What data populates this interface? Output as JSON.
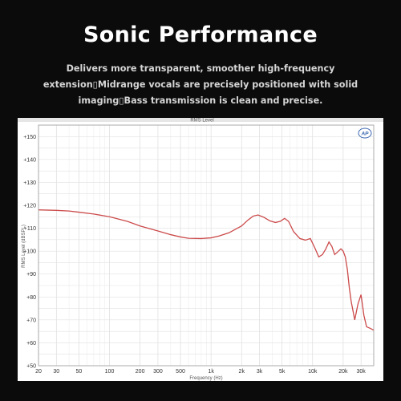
{
  "header": {
    "title": "Sonic Performance",
    "description": "Delivers more transparent, smoother high-frequency extension▯Midrange vocals are precisely positioned with solid imaging▯Bass transmission is clean and precise."
  },
  "chart_data": {
    "type": "line",
    "title": "RMS Level",
    "xlabel": "Frequency (Hz)",
    "ylabel": "RMS Level (dBSPL)",
    "logo": "AP",
    "x_scale": "log",
    "xlim": [
      20,
      40000
    ],
    "ylim": [
      50,
      155
    ],
    "x_ticks": [
      20,
      30,
      50,
      100,
      200,
      300,
      500,
      1000,
      2000,
      3000,
      5000,
      10000,
      20000,
      30000
    ],
    "x_tick_labels": [
      "20",
      "30",
      "50",
      "100",
      "200",
      "300",
      "500",
      "1k",
      "2k",
      "3k",
      "5k",
      "10k",
      "20k",
      "30k"
    ],
    "y_ticks": [
      50,
      60,
      70,
      80,
      90,
      100,
      110,
      120,
      130,
      140,
      150
    ],
    "y_tick_labels": [
      "+50",
      "+60",
      "+70",
      "+80",
      "+90",
      "+100",
      "+110",
      "+120",
      "+130",
      "+140",
      "+150"
    ],
    "grid": true,
    "line_color": "#cc4a4a",
    "series": [
      {
        "x": [
          20,
          30,
          40,
          50,
          70,
          100,
          150,
          200,
          300,
          400,
          500,
          600,
          800,
          1000,
          1200,
          1500,
          2000,
          2300,
          2600,
          2900,
          3300,
          3800,
          4300,
          4800,
          5300,
          5800,
          6500,
          7500,
          8500,
          9500,
          10500,
          11500,
          12500,
          13500,
          14500,
          15500,
          16500,
          17500,
          19000,
          20000,
          21000,
          22000,
          23000,
          24000,
          26000,
          28000,
          30000,
          32000,
          34000,
          37000,
          40000
        ],
        "y": [
          118,
          117.8,
          117.5,
          117,
          116.2,
          115,
          113,
          111,
          108.8,
          107.2,
          106.2,
          105.6,
          105.5,
          105.8,
          106.6,
          108,
          111,
          113.5,
          115.3,
          115.8,
          114.8,
          113.2,
          112.5,
          113,
          114.3,
          113,
          108.5,
          105.5,
          104.8,
          105.5,
          101.5,
          97.5,
          98.5,
          101,
          104,
          102,
          98.5,
          99.5,
          101,
          100,
          97.5,
          92,
          84,
          78,
          70,
          77,
          81,
          72,
          67,
          66.3,
          65.5
        ]
      }
    ]
  }
}
